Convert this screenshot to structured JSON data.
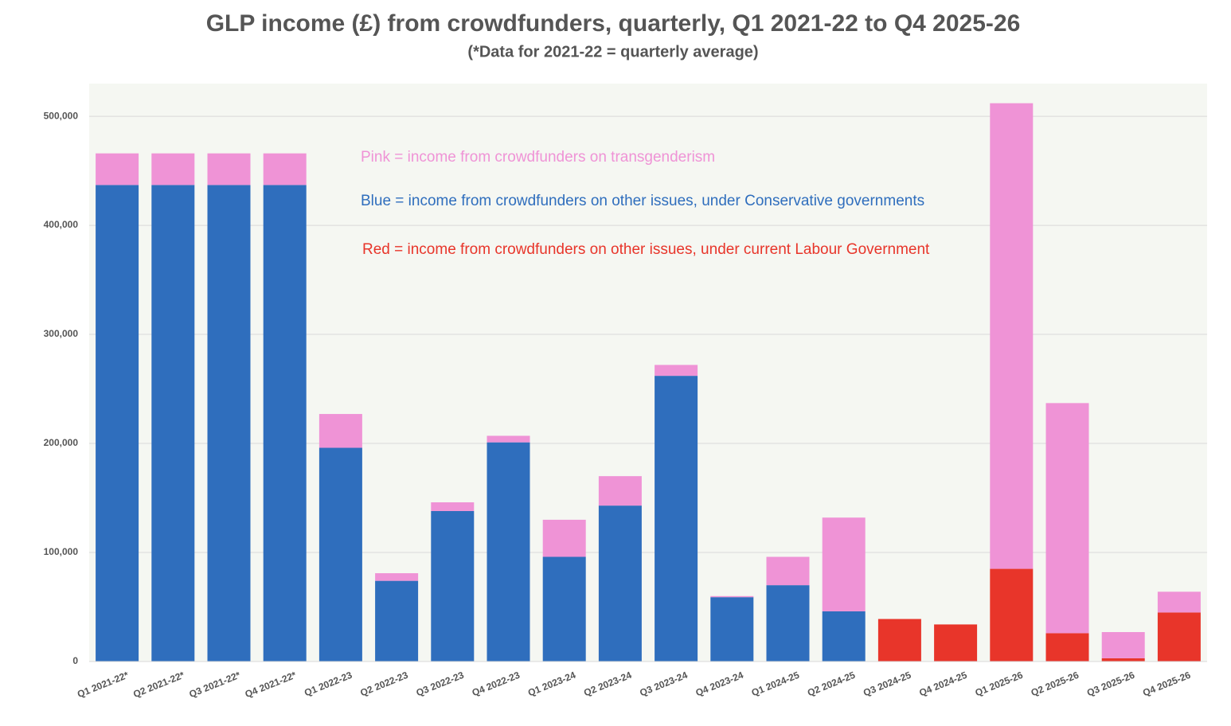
{
  "chart_data": {
    "type": "stacked_bar",
    "title": "GLP income (£) from crowdfunders, quarterly, Q1 2021-22 to Q4 2025-26",
    "subtitle": "(*Data for 2021-22 = quarterly average)",
    "categories": [
      "Q1 2021-22*",
      "Q2 2021-22*",
      "Q3 2021-22*",
      "Q4 2021-22*",
      "Q1 2022-23",
      "Q2 2022-23",
      "Q3 2022-23",
      "Q4 2022-23",
      "Q1 2023-24",
      "Q2 2023-24",
      "Q3 2023-24",
      "Q4 2023-24",
      "Q1 2024-25",
      "Q2 2024-25",
      "Q3 2024-25",
      "Q4 2024-25",
      "Q1 2025-26",
      "Q2 2025-26",
      "Q3 2025-26",
      "Q4 2025-26"
    ],
    "series": [
      {
        "name": "Blue = income from crowdfunders on other issues, under Conservative governments",
        "color": "#2f6ebd",
        "values": [
          437000,
          437000,
          437000,
          437000,
          196000,
          74000,
          138000,
          201000,
          96000,
          143000,
          262000,
          59000,
          70000,
          46000,
          null,
          null,
          null,
          null,
          null,
          null
        ]
      },
      {
        "name": "Red = income from crowdfunders on other issues, under current Labour Government",
        "color": "#e8352a",
        "values": [
          null,
          null,
          null,
          null,
          null,
          null,
          null,
          null,
          null,
          null,
          null,
          null,
          null,
          null,
          39000,
          34000,
          85000,
          26000,
          3000,
          45000
        ]
      },
      {
        "name": "Pink = income from crowdfunders on transgenderism",
        "color": "#ef93d6",
        "values": [
          29000,
          29000,
          29000,
          29000,
          31000,
          7000,
          8000,
          6000,
          34000,
          27000,
          10000,
          1000,
          26000,
          86000,
          0,
          0,
          427000,
          211000,
          24000,
          19000
        ]
      }
    ],
    "ylim": [
      0,
      530000
    ],
    "yticks": [
      0,
      {
        "value": 100000,
        "label": "100,000"
      },
      {
        "value": 200000,
        "label": "200,000"
      },
      {
        "value": 300000,
        "label": "300,000"
      },
      {
        "value": 400000,
        "label": "400,000"
      },
      {
        "value": 500000,
        "label": "500,000"
      }
    ],
    "grid": true
  }
}
